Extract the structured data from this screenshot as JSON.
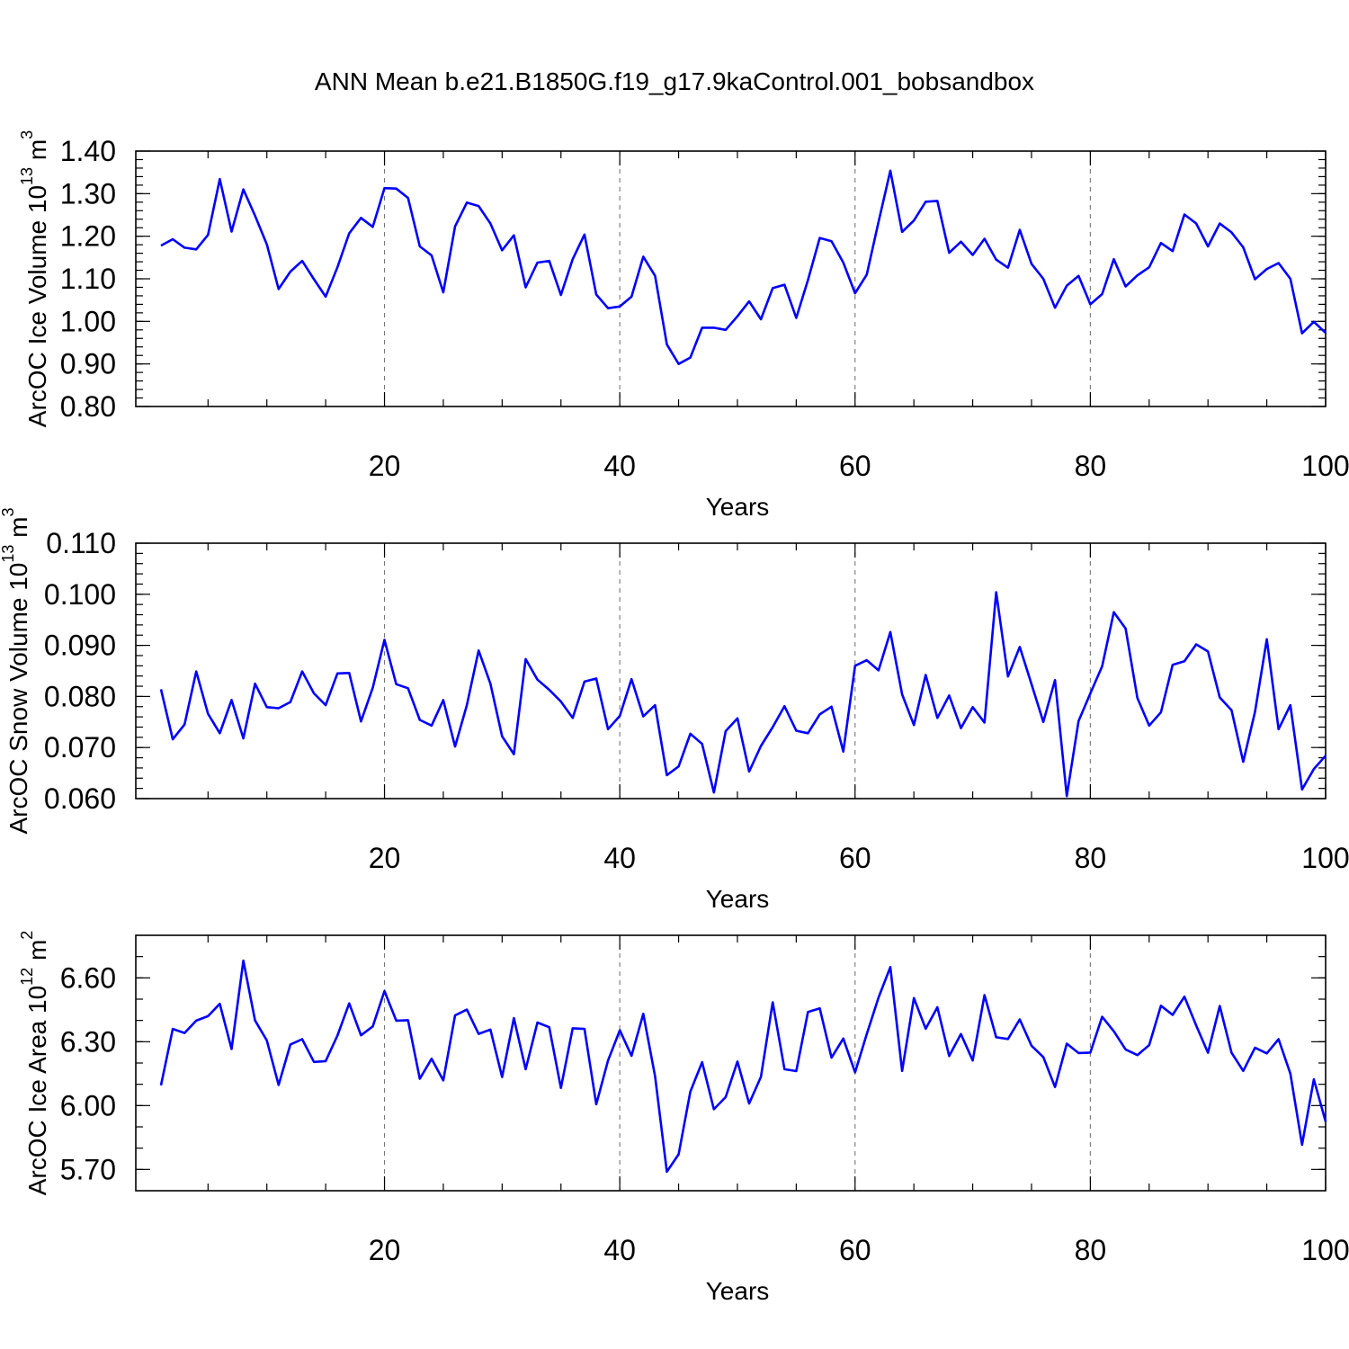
{
  "figure": {
    "title": "ANN Mean b.e21.B1850G.f19_g17.9kaControl.001_bobsandbox"
  },
  "chart_data": [
    {
      "type": "line",
      "title": "",
      "xlabel": "Years",
      "ylabel_text": "ArcOC Ice Volume 10",
      "ylabel_exp": "13",
      "ylabel_unit": " m",
      "ylabel_unit_exp": "3",
      "xlim": [
        1,
        100
      ],
      "ylim": [
        0.8,
        1.4
      ],
      "xticks": [
        20,
        40,
        60,
        80,
        100
      ],
      "yticks": [
        0.8,
        0.9,
        1.0,
        1.1,
        1.2,
        1.3,
        1.4
      ],
      "ytick_labels": [
        "0.80",
        "0.90",
        "1.00",
        "1.10",
        "1.20",
        "1.30",
        "1.40"
      ],
      "y_minor_step": 0.02,
      "grid_x": [
        20,
        40,
        60,
        80
      ],
      "color": "#0000ff",
      "x_start": 1,
      "values": [
        1.178,
        1.193,
        1.173,
        1.169,
        1.203,
        1.334,
        1.211,
        1.31,
        1.248,
        1.181,
        1.076,
        1.117,
        1.142,
        1.099,
        1.058,
        1.127,
        1.207,
        1.243,
        1.222,
        1.313,
        1.312,
        1.29,
        1.176,
        1.155,
        1.068,
        1.223,
        1.279,
        1.271,
        1.23,
        1.167,
        1.202,
        1.08,
        1.138,
        1.142,
        1.062,
        1.146,
        1.204,
        1.063,
        1.031,
        1.035,
        1.058,
        1.152,
        1.107,
        0.946,
        0.9,
        0.915,
        0.985,
        0.985,
        0.98,
        1.012,
        1.047,
        1.005,
        1.078,
        1.086,
        1.008,
        1.097,
        1.196,
        1.188,
        1.138,
        1.066,
        1.11,
        1.234,
        1.354,
        1.21,
        1.237,
        1.281,
        1.283,
        1.161,
        1.187,
        1.156,
        1.194,
        1.145,
        1.126,
        1.215,
        1.135,
        1.1,
        1.032,
        1.084,
        1.107,
        1.04,
        1.064,
        1.146,
        1.082,
        1.108,
        1.127,
        1.184,
        1.165,
        1.251,
        1.23,
        1.176,
        1.23,
        1.209,
        1.174,
        1.099,
        1.123,
        1.137,
        1.1,
        0.972,
        0.999,
        0.973
      ]
    },
    {
      "type": "line",
      "title": "",
      "xlabel": "Years",
      "ylabel_text": "ArcOC Snow Volume 10",
      "ylabel_exp": "13",
      "ylabel_unit": " m",
      "ylabel_unit_exp": "3",
      "xlim": [
        1,
        100
      ],
      "ylim": [
        0.06,
        0.11
      ],
      "xticks": [
        20,
        40,
        60,
        80,
        100
      ],
      "yticks": [
        0.06,
        0.07,
        0.08,
        0.09,
        0.1,
        0.11
      ],
      "ytick_labels": [
        "0.060",
        "0.070",
        "0.080",
        "0.090",
        "0.100",
        "0.110"
      ],
      "y_minor_step": 0.002,
      "grid_x": [
        20,
        40,
        60,
        80
      ],
      "color": "#0000ff",
      "x_start": 1,
      "values": [
        0.0814,
        0.0716,
        0.0745,
        0.0849,
        0.0766,
        0.0728,
        0.0793,
        0.0718,
        0.0825,
        0.0779,
        0.0777,
        0.0789,
        0.0849,
        0.0806,
        0.0783,
        0.0845,
        0.0846,
        0.0751,
        0.0817,
        0.0911,
        0.0824,
        0.0816,
        0.0754,
        0.0743,
        0.0793,
        0.0702,
        0.0783,
        0.089,
        0.0825,
        0.0722,
        0.0687,
        0.0873,
        0.0833,
        0.0813,
        0.079,
        0.0758,
        0.0829,
        0.0835,
        0.0736,
        0.0762,
        0.0834,
        0.0761,
        0.0783,
        0.0646,
        0.0663,
        0.0727,
        0.0707,
        0.0612,
        0.0732,
        0.0757,
        0.0653,
        0.0703,
        0.074,
        0.0781,
        0.0733,
        0.0728,
        0.0765,
        0.078,
        0.0692,
        0.086,
        0.0871,
        0.0851,
        0.0926,
        0.0804,
        0.0744,
        0.0842,
        0.0758,
        0.0802,
        0.0738,
        0.0779,
        0.0749,
        0.1004,
        0.0839,
        0.0897,
        0.0824,
        0.075,
        0.0832,
        0.0605,
        0.0752,
        0.0806,
        0.0859,
        0.0965,
        0.0933,
        0.0797,
        0.0743,
        0.0769,
        0.0862,
        0.0869,
        0.0902,
        0.0888,
        0.0798,
        0.0773,
        0.0672,
        0.077,
        0.0912,
        0.0736,
        0.0783,
        0.0618,
        0.0658,
        0.0684
      ]
    },
    {
      "type": "line",
      "title": "",
      "xlabel": "Years",
      "ylabel_text": "ArcOC Ice Area 10",
      "ylabel_exp": "12",
      "ylabel_unit": " m",
      "ylabel_unit_exp": "2",
      "xlim": [
        1,
        100
      ],
      "ylim": [
        5.6,
        6.8
      ],
      "xticks": [
        20,
        40,
        60,
        80,
        100
      ],
      "yticks": [
        5.7,
        6.0,
        6.3,
        6.6
      ],
      "ytick_labels": [
        "5.70",
        "6.00",
        "6.30",
        "6.60"
      ],
      "y_minor_step": 0.1,
      "grid_x": [
        20,
        40,
        60,
        80
      ],
      "color": "#0000ff",
      "x_start": 1,
      "values": [
        6.095,
        6.36,
        6.341,
        6.399,
        6.42,
        6.478,
        6.266,
        6.681,
        6.4,
        6.306,
        6.097,
        6.287,
        6.312,
        6.205,
        6.209,
        6.329,
        6.48,
        6.33,
        6.372,
        6.538,
        6.399,
        6.401,
        6.126,
        6.22,
        6.118,
        6.424,
        6.451,
        6.337,
        6.357,
        6.134,
        6.411,
        6.171,
        6.39,
        6.368,
        6.083,
        6.363,
        6.36,
        6.006,
        6.212,
        6.354,
        6.234,
        6.431,
        6.138,
        5.689,
        5.771,
        6.065,
        6.204,
        5.983,
        6.04,
        6.207,
        6.01,
        6.135,
        6.485,
        6.171,
        6.162,
        6.44,
        6.457,
        6.225,
        6.315,
        6.156,
        6.336,
        6.508,
        6.651,
        6.163,
        6.505,
        6.361,
        6.462,
        6.233,
        6.336,
        6.212,
        6.519,
        6.321,
        6.313,
        6.405,
        6.281,
        6.228,
        6.087,
        6.291,
        6.247,
        6.249,
        6.417,
        6.349,
        6.264,
        6.237,
        6.284,
        6.469,
        6.426,
        6.512,
        6.376,
        6.248,
        6.468,
        6.248,
        6.163,
        6.272,
        6.245,
        6.312,
        6.15,
        5.816,
        6.123,
        5.925
      ]
    }
  ]
}
